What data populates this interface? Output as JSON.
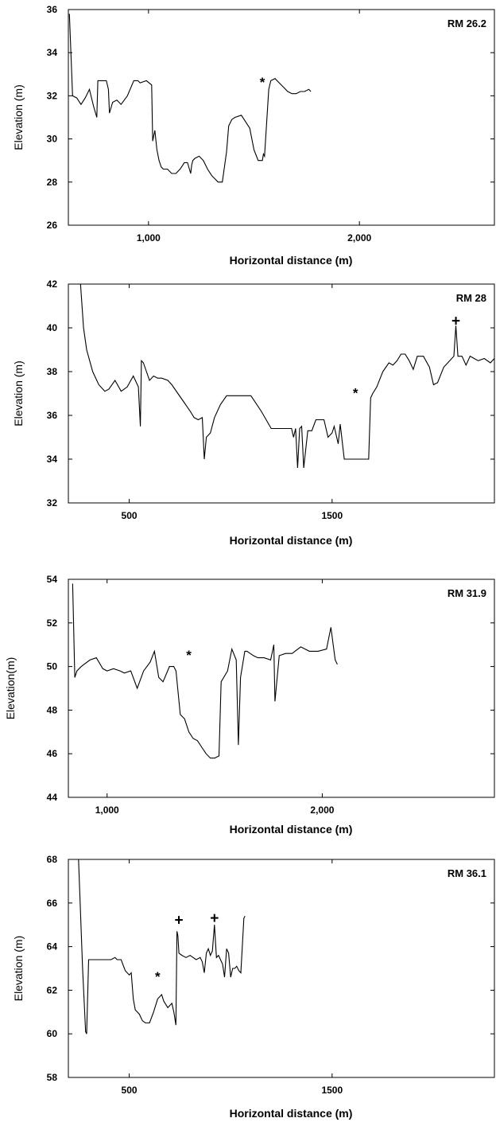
{
  "chart_data": [
    {
      "type": "line",
      "panel_label": "RM 26.2",
      "xlabel": "Horizontal distance (m)",
      "ylabel": "Elevation (m)",
      "xlim": [
        620,
        2640
      ],
      "ylim": [
        26,
        36
      ],
      "xticks": [
        1000,
        2000
      ],
      "xtick_labels": [
        "1,000",
        "2,000"
      ],
      "yticks": [
        26,
        28,
        30,
        32,
        34,
        36
      ],
      "grid": false,
      "series": [
        {
          "x": [
            625,
            640,
            660,
            680,
            700,
            720,
            740,
            755,
            760,
            800,
            810,
            815,
            830,
            850,
            870,
            900,
            930,
            950,
            960,
            990,
            1015,
            1020,
            1030,
            1040,
            1050,
            1060,
            1070,
            1090,
            1110,
            1130,
            1150,
            1170,
            1185,
            1200,
            1205,
            1210,
            1220,
            1240,
            1260,
            1280,
            1300,
            1330,
            1340,
            1350,
            1370,
            1380,
            1395,
            1410,
            1440,
            1460,
            1480,
            1500,
            1520,
            1540,
            1545,
            1550,
            1570,
            1580,
            1600,
            1620,
            1640,
            1660,
            1680,
            1700,
            1720,
            1740,
            1760,
            1770
          ],
          "y": [
            35.8,
            32.0,
            31.9,
            31.6,
            31.9,
            32.3,
            31.5,
            31.0,
            32.7,
            32.7,
            32.3,
            31.2,
            31.7,
            31.8,
            31.6,
            32.0,
            32.7,
            32.7,
            32.6,
            32.7,
            32.5,
            29.9,
            30.4,
            29.5,
            29.0,
            28.7,
            28.6,
            28.6,
            28.4,
            28.4,
            28.6,
            28.9,
            28.9,
            28.4,
            28.8,
            29.0,
            29.1,
            29.2,
            29.0,
            28.6,
            28.3,
            28.0,
            28.0,
            28.0,
            29.4,
            30.6,
            30.9,
            31.0,
            31.1,
            30.8,
            30.5,
            29.5,
            29.0,
            29.0,
            29.3,
            29.2,
            32.3,
            32.7,
            32.8,
            32.6,
            32.4,
            32.2,
            32.1,
            32.1,
            32.2,
            32.2,
            32.3,
            32.2
          ]
        }
      ],
      "annotations": [
        {
          "text": "*",
          "x": 1540,
          "y": 32.7
        }
      ]
    },
    {
      "type": "line",
      "panel_label": "RM 28",
      "xlabel": "Horizontal distance (m)",
      "ylabel": "Elevation (m)",
      "xlim": [
        200,
        2300
      ],
      "ylim": [
        32,
        42
      ],
      "xticks": [
        500,
        1500
      ],
      "xtick_labels": [
        "500",
        "1500"
      ],
      "yticks": [
        32,
        34,
        36,
        38,
        40,
        42
      ],
      "grid": false,
      "series": [
        {
          "x": [
            260,
            275,
            290,
            320,
            350,
            380,
            400,
            430,
            460,
            490,
            520,
            545,
            555,
            560,
            570,
            600,
            620,
            640,
            660,
            690,
            710,
            740,
            770,
            800,
            820,
            840,
            860,
            870,
            880,
            900,
            920,
            950,
            980,
            1000,
            1050,
            1100,
            1150,
            1200,
            1250,
            1290,
            1300,
            1310,
            1320,
            1330,
            1340,
            1350,
            1360,
            1380,
            1400,
            1420,
            1440,
            1460,
            1480,
            1500,
            1510,
            1530,
            1540,
            1560,
            1580,
            1600,
            1620,
            1650,
            1680,
            1690,
            1700,
            1720,
            1750,
            1780,
            1800,
            1820,
            1840,
            1860,
            1880,
            1900,
            1920,
            1950,
            1980,
            2000,
            2020,
            2050,
            2080,
            2100,
            2110,
            2120,
            2140,
            2160,
            2180,
            2200,
            2220,
            2250,
            2280,
            2300
          ],
          "y": [
            42,
            40.0,
            39.0,
            38.0,
            37.4,
            37.1,
            37.2,
            37.6,
            37.1,
            37.3,
            37.8,
            37.3,
            35.5,
            38.5,
            38.4,
            37.6,
            37.8,
            37.7,
            37.7,
            37.6,
            37.4,
            37.0,
            36.6,
            36.2,
            35.9,
            35.8,
            35.9,
            34.0,
            35.0,
            35.2,
            35.9,
            36.5,
            36.9,
            36.9,
            36.9,
            36.9,
            36.2,
            35.4,
            35.4,
            35.4,
            35.4,
            35.0,
            35.4,
            33.6,
            35.4,
            35.5,
            33.6,
            35.3,
            35.3,
            35.8,
            35.8,
            35.8,
            35.0,
            35.2,
            35.5,
            34.7,
            35.6,
            34.0,
            34.0,
            34.0,
            34.0,
            34.0,
            34.0,
            36.8,
            37.0,
            37.3,
            38.0,
            38.4,
            38.3,
            38.5,
            38.8,
            38.8,
            38.5,
            38.1,
            38.7,
            38.7,
            38.2,
            37.4,
            37.5,
            38.2,
            38.5,
            38.7,
            40.1,
            38.7,
            38.7,
            38.3,
            38.7,
            38.6,
            38.5,
            38.6,
            38.4,
            38.6
          ],
          "name": ""
        }
      ],
      "annotations": [
        {
          "text": "*",
          "x": 1615,
          "y": 37.1
        },
        {
          "text": "+",
          "x": 2110,
          "y": 40.4
        }
      ]
    },
    {
      "type": "line",
      "panel_label": "RM 31.9",
      "xlabel": "Horizontal distance (m)",
      "ylabel": "Elevation(m)",
      "xlim": [
        820,
        2800
      ],
      "ylim": [
        44,
        54
      ],
      "xticks": [
        1000,
        2000
      ],
      "xtick_labels": [
        "1,000",
        "2,000"
      ],
      "yticks": [
        44,
        46,
        48,
        50,
        52,
        54
      ],
      "grid": false,
      "series": [
        {
          "x": [
            840,
            850,
            860,
            880,
            920,
            950,
            980,
            1000,
            1030,
            1060,
            1080,
            1110,
            1140,
            1170,
            1200,
            1220,
            1240,
            1260,
            1290,
            1310,
            1320,
            1340,
            1360,
            1380,
            1400,
            1420,
            1440,
            1460,
            1480,
            1500,
            1520,
            1530,
            1560,
            1580,
            1600,
            1610,
            1620,
            1640,
            1650,
            1680,
            1700,
            1730,
            1760,
            1775,
            1780,
            1800,
            1830,
            1860,
            1900,
            1940,
            1980,
            2020,
            2040,
            2060,
            2070
          ],
          "y": [
            53.8,
            49.5,
            49.8,
            50.0,
            50.3,
            50.4,
            49.9,
            49.8,
            49.9,
            49.8,
            49.7,
            49.8,
            49.0,
            49.8,
            50.2,
            50.7,
            49.5,
            49.3,
            50.0,
            50.0,
            49.8,
            47.8,
            47.6,
            47.0,
            46.7,
            46.6,
            46.3,
            46.0,
            45.8,
            45.8,
            45.9,
            49.3,
            49.8,
            50.8,
            50.3,
            46.4,
            49.5,
            50.7,
            50.7,
            50.5,
            50.4,
            50.4,
            50.3,
            51.0,
            48.4,
            50.5,
            50.6,
            50.6,
            50.9,
            50.7,
            50.7,
            50.8,
            51.8,
            50.3,
            50.1
          ]
        }
      ],
      "annotations": [
        {
          "text": "*",
          "x": 1380,
          "y": 50.6
        }
      ]
    },
    {
      "type": "line",
      "panel_label": "RM 36.1",
      "xlabel": "Horizontal distance (m)",
      "ylabel": "Elevation (m)",
      "xlim": [
        200,
        2300
      ],
      "ylim": [
        58,
        68
      ],
      "xticks": [
        500,
        1500
      ],
      "xtick_labels": [
        "500",
        "1500"
      ],
      "yticks": [
        58,
        60,
        62,
        64,
        66,
        68
      ],
      "grid": false,
      "series": [
        {
          "x": [
            250,
            270,
            285,
            290,
            300,
            340,
            380,
            410,
            430,
            440,
            460,
            480,
            500,
            510,
            520,
            530,
            550,
            565,
            580,
            600,
            620,
            640,
            660,
            670,
            690,
            700,
            710,
            720,
            730,
            735,
            740,
            745,
            760,
            780,
            800,
            830,
            850,
            860,
            870,
            880,
            890,
            900,
            910,
            920,
            930,
            940,
            950,
            960,
            970,
            980,
            990,
            1000,
            1010,
            1020,
            1030,
            1040,
            1050,
            1065,
            1070
          ],
          "y": [
            68,
            63.0,
            60.1,
            60.0,
            63.4,
            63.4,
            63.4,
            63.4,
            63.5,
            63.4,
            63.4,
            62.9,
            62.7,
            62.8,
            61.6,
            61.1,
            60.9,
            60.6,
            60.5,
            60.5,
            61.0,
            61.6,
            61.8,
            61.5,
            61.2,
            61.3,
            61.4,
            61.0,
            60.4,
            64.7,
            64.5,
            63.7,
            63.6,
            63.5,
            63.6,
            63.4,
            63.5,
            63.3,
            62.8,
            63.7,
            63.9,
            63.6,
            63.8,
            65.0,
            63.5,
            63.6,
            63.4,
            63.2,
            62.6,
            63.9,
            63.7,
            62.6,
            63.0,
            63.0,
            63.1,
            62.9,
            62.8,
            65.3,
            65.4
          ]
        }
      ],
      "annotations": [
        {
          "text": "*",
          "x": 640,
          "y": 62.7
        },
        {
          "text": "+",
          "x": 745,
          "y": 65.3
        },
        {
          "text": "+",
          "x": 920,
          "y": 65.4
        }
      ]
    }
  ]
}
